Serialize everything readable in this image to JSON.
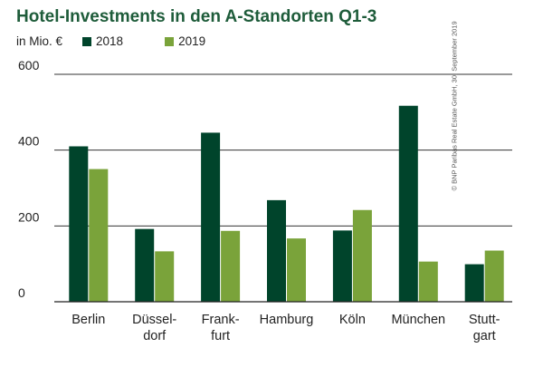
{
  "chart_data": {
    "type": "bar",
    "title": "Hotel-Investments in den A-Standorten Q1-3",
    "unit_label": "in Mio. €",
    "categories": [
      [
        "Berlin"
      ],
      [
        "Düssel-",
        "dorf"
      ],
      [
        "Frank-",
        "furt"
      ],
      [
        "Hamburg"
      ],
      [
        "Köln"
      ],
      [
        "München"
      ],
      [
        "Stutt-",
        "gart"
      ]
    ],
    "series": [
      {
        "name": "2018",
        "color": "#00442b",
        "values": [
          410,
          192,
          446,
          268,
          188,
          517,
          99
        ]
      },
      {
        "name": "2019",
        "color": "#7aa33a",
        "values": [
          350,
          133,
          187,
          167,
          242,
          106,
          135
        ]
      }
    ],
    "ylim": [
      0,
      600
    ],
    "yticks": [
      0,
      200,
      400,
      600
    ],
    "grid": true,
    "legend_position": "top-left"
  },
  "copyright": "© BNP Paribas Real Estate GmbH, 30. September 2019"
}
